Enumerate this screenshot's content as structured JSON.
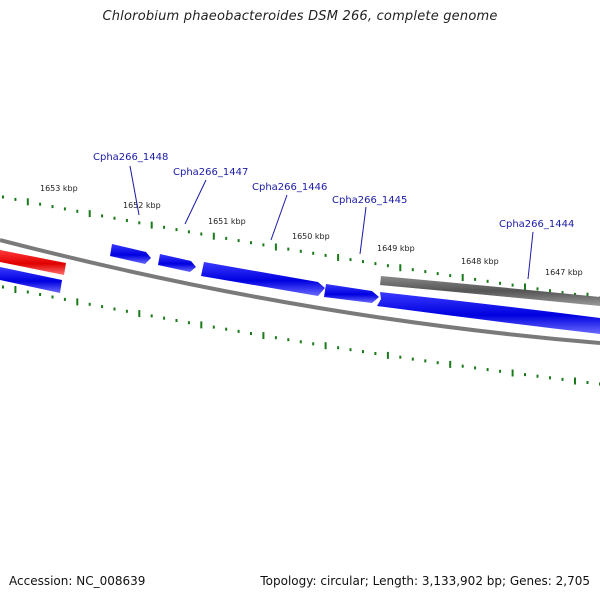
{
  "title": "Chlorobium phaeobacteroides DSM 266, complete genome",
  "footer": {
    "accession": "Accession: NC_008639",
    "topology": "Topology: circular; Length: 3,133,902 bp; Genes: 2,705"
  },
  "scale_labels": [
    "1653 kbp",
    "1652 kbp",
    "1651 kbp",
    "1650 kbp",
    "1649 kbp",
    "1648 kbp",
    "1647 kbp"
  ],
  "gene_labels": [
    "Cpha266_1448",
    "Cpha266_1447",
    "Cpha266_1446",
    "Cpha266_1445",
    "Cpha266_1444"
  ],
  "colors": {
    "cds_forward": "#0000e0",
    "cds_highlight": "#e00000",
    "other_feature": "#606060",
    "backbone": "#7a7a7a",
    "tick": "#1a7a1a",
    "label_leader": "#1a1aa6"
  }
}
